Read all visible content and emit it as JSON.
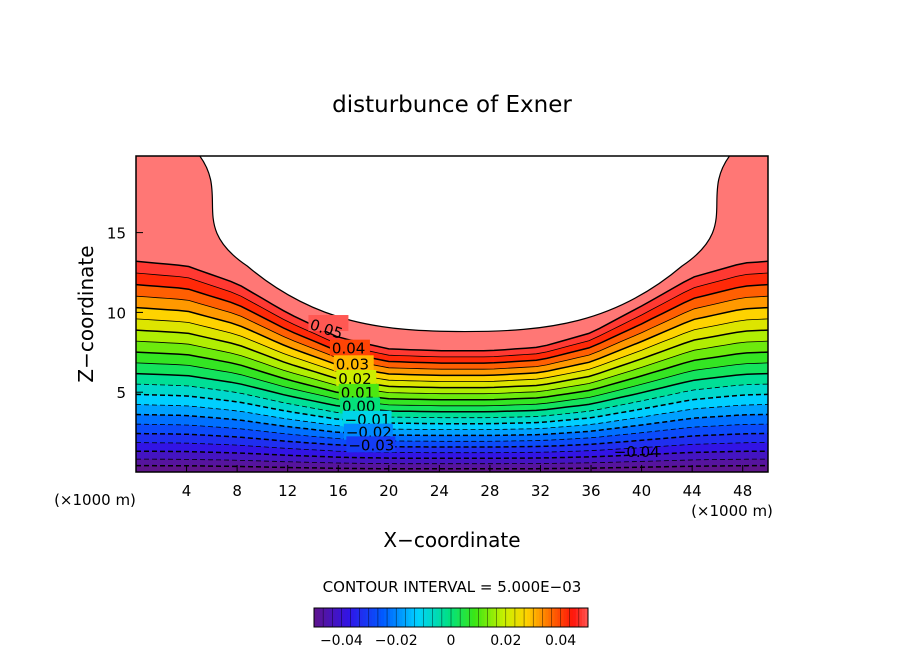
{
  "chart_data": {
    "type": "contour",
    "title": "disturbunce of Exner",
    "xlabel": "X−coordinate",
    "ylabel": "Z−coordinate",
    "x_unit": "(×1000 m)",
    "y_unit": "(×1000 m)",
    "xlim": [
      0,
      50
    ],
    "ylim": [
      0,
      19.8
    ],
    "x_ticks": [
      "4",
      "8",
      "12",
      "16",
      "20",
      "24",
      "28",
      "32",
      "36",
      "40",
      "44",
      "48"
    ],
    "y_ticks": [
      "5",
      "10",
      "15"
    ],
    "contour_interval_text": "CONTOUR INTERVAL = 5.000E−03",
    "colorbar_ticks": [
      "−0.04",
      "−0.02",
      "0",
      "0.02",
      "0.04"
    ],
    "colorbar_range": [
      -0.05,
      0.05
    ],
    "contour_labels": [
      "0.05",
      "0.04",
      "0.03",
      "0.02",
      "0.01",
      "0.00",
      "−0.01",
      "−0.02",
      "−0.03",
      "−0.04"
    ],
    "unfilled_region": "values above 0.055 left white near top center",
    "negative_contours": "dashed",
    "grid": false,
    "legend": "none"
  }
}
